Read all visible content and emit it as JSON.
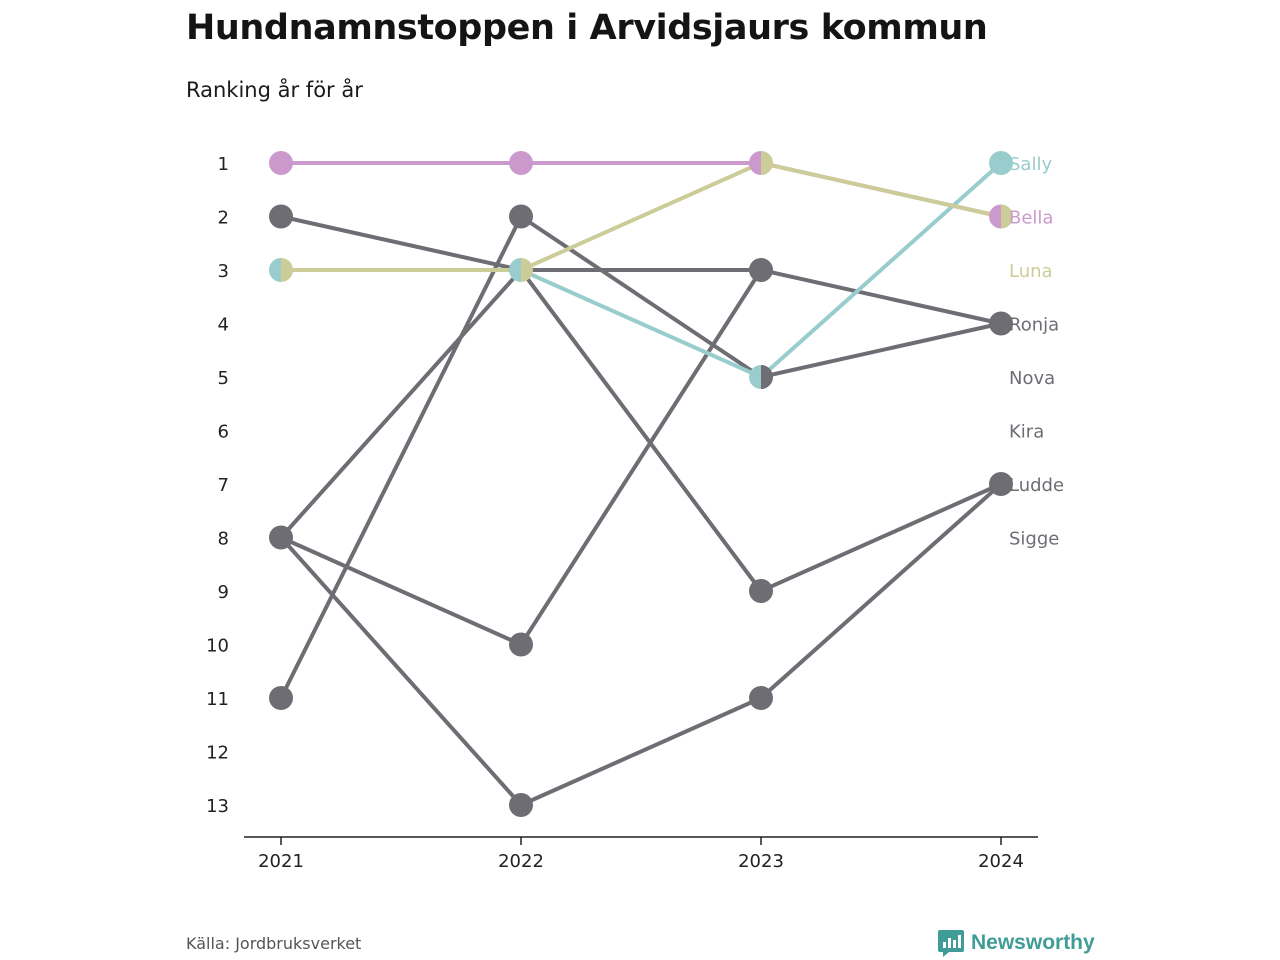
{
  "title": "Hundnamnstoppen i Arvidsjaurs kommun",
  "subtitle": "Ranking år för år",
  "source": "Källa: Jordbruksverket",
  "brand": {
    "name": "Newsworthy",
    "icon": "newsworthy-logo-icon",
    "color": "#3f9c96"
  },
  "colors": {
    "Sally": "#99cccc",
    "Bella": "#cc99cc",
    "Luna": "#cccc99",
    "other": "#6e6d73",
    "axis": "#222222"
  },
  "chart_data": {
    "type": "line",
    "subtype": "bump",
    "x": [
      "2021",
      "2022",
      "2023",
      "2024"
    ],
    "y_ticks": [
      1,
      2,
      3,
      4,
      5,
      6,
      7,
      8,
      9,
      10,
      11,
      12,
      13
    ],
    "y_reversed": true,
    "ylim": [
      1,
      13
    ],
    "grid": false,
    "legend": "right-labels",
    "series": [
      {
        "name": "Sally",
        "values": [
          3,
          3,
          5,
          1
        ],
        "color": "#99cccc"
      },
      {
        "name": "Bella",
        "values": [
          1,
          1,
          1,
          2
        ],
        "color": "#cc99cc"
      },
      {
        "name": "Luna",
        "values": [
          3,
          3,
          1,
          2
        ],
        "color": "#cccc99"
      },
      {
        "name": "Ronja",
        "values": [
          2,
          3,
          3,
          4
        ],
        "color": "#6e6d73"
      },
      {
        "name": "Nova",
        "values": [
          11,
          2,
          5,
          4
        ],
        "color": "#6e6d73"
      },
      {
        "name": "Kira",
        "values": [
          8,
          10,
          3,
          null
        ],
        "color": "#6e6d73"
      },
      {
        "name": "Ludde",
        "values": [
          8,
          3,
          9,
          7
        ],
        "color": "#6e6d73"
      },
      {
        "name": "Sigge",
        "values": [
          8,
          13,
          11,
          7
        ],
        "color": "#6e6d73"
      }
    ]
  }
}
